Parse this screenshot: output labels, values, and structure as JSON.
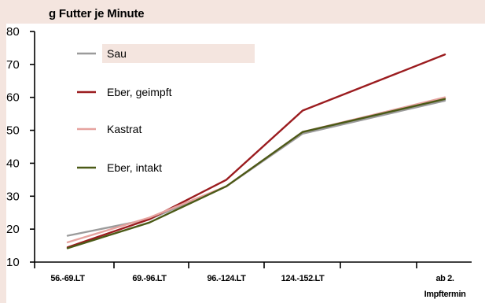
{
  "chart_data": {
    "type": "line",
    "title": "g Futter je Minute",
    "xlabel": "",
    "ylabel": "",
    "categories": [
      "56.-69.LT",
      "69.-96.LT",
      "96.-124.LT",
      "124.-152.LT",
      "ab 2. Impftermin"
    ],
    "ylim": [
      10,
      80
    ],
    "yticks": [
      10,
      20,
      30,
      40,
      50,
      60,
      70,
      80
    ],
    "grid": false,
    "legend_position": "upper-left",
    "series": [
      {
        "name": "Sau",
        "color": "#9b9b9b",
        "values": [
          18,
          23,
          33,
          49,
          59
        ]
      },
      {
        "name": "Eber, geimpft",
        "color": "#9b1c1f",
        "values": [
          14.5,
          23,
          35,
          56,
          73
        ]
      },
      {
        "name": "Kastrat",
        "color": "#e6a39f",
        "values": [
          16,
          23.5,
          33,
          49.5,
          60
        ]
      },
      {
        "name": "Eber, intakt",
        "color": "#4b5a17",
        "values": [
          14.2,
          22,
          33,
          49.5,
          59.5
        ]
      }
    ],
    "legend_highlight_color": "#f4e5df"
  }
}
